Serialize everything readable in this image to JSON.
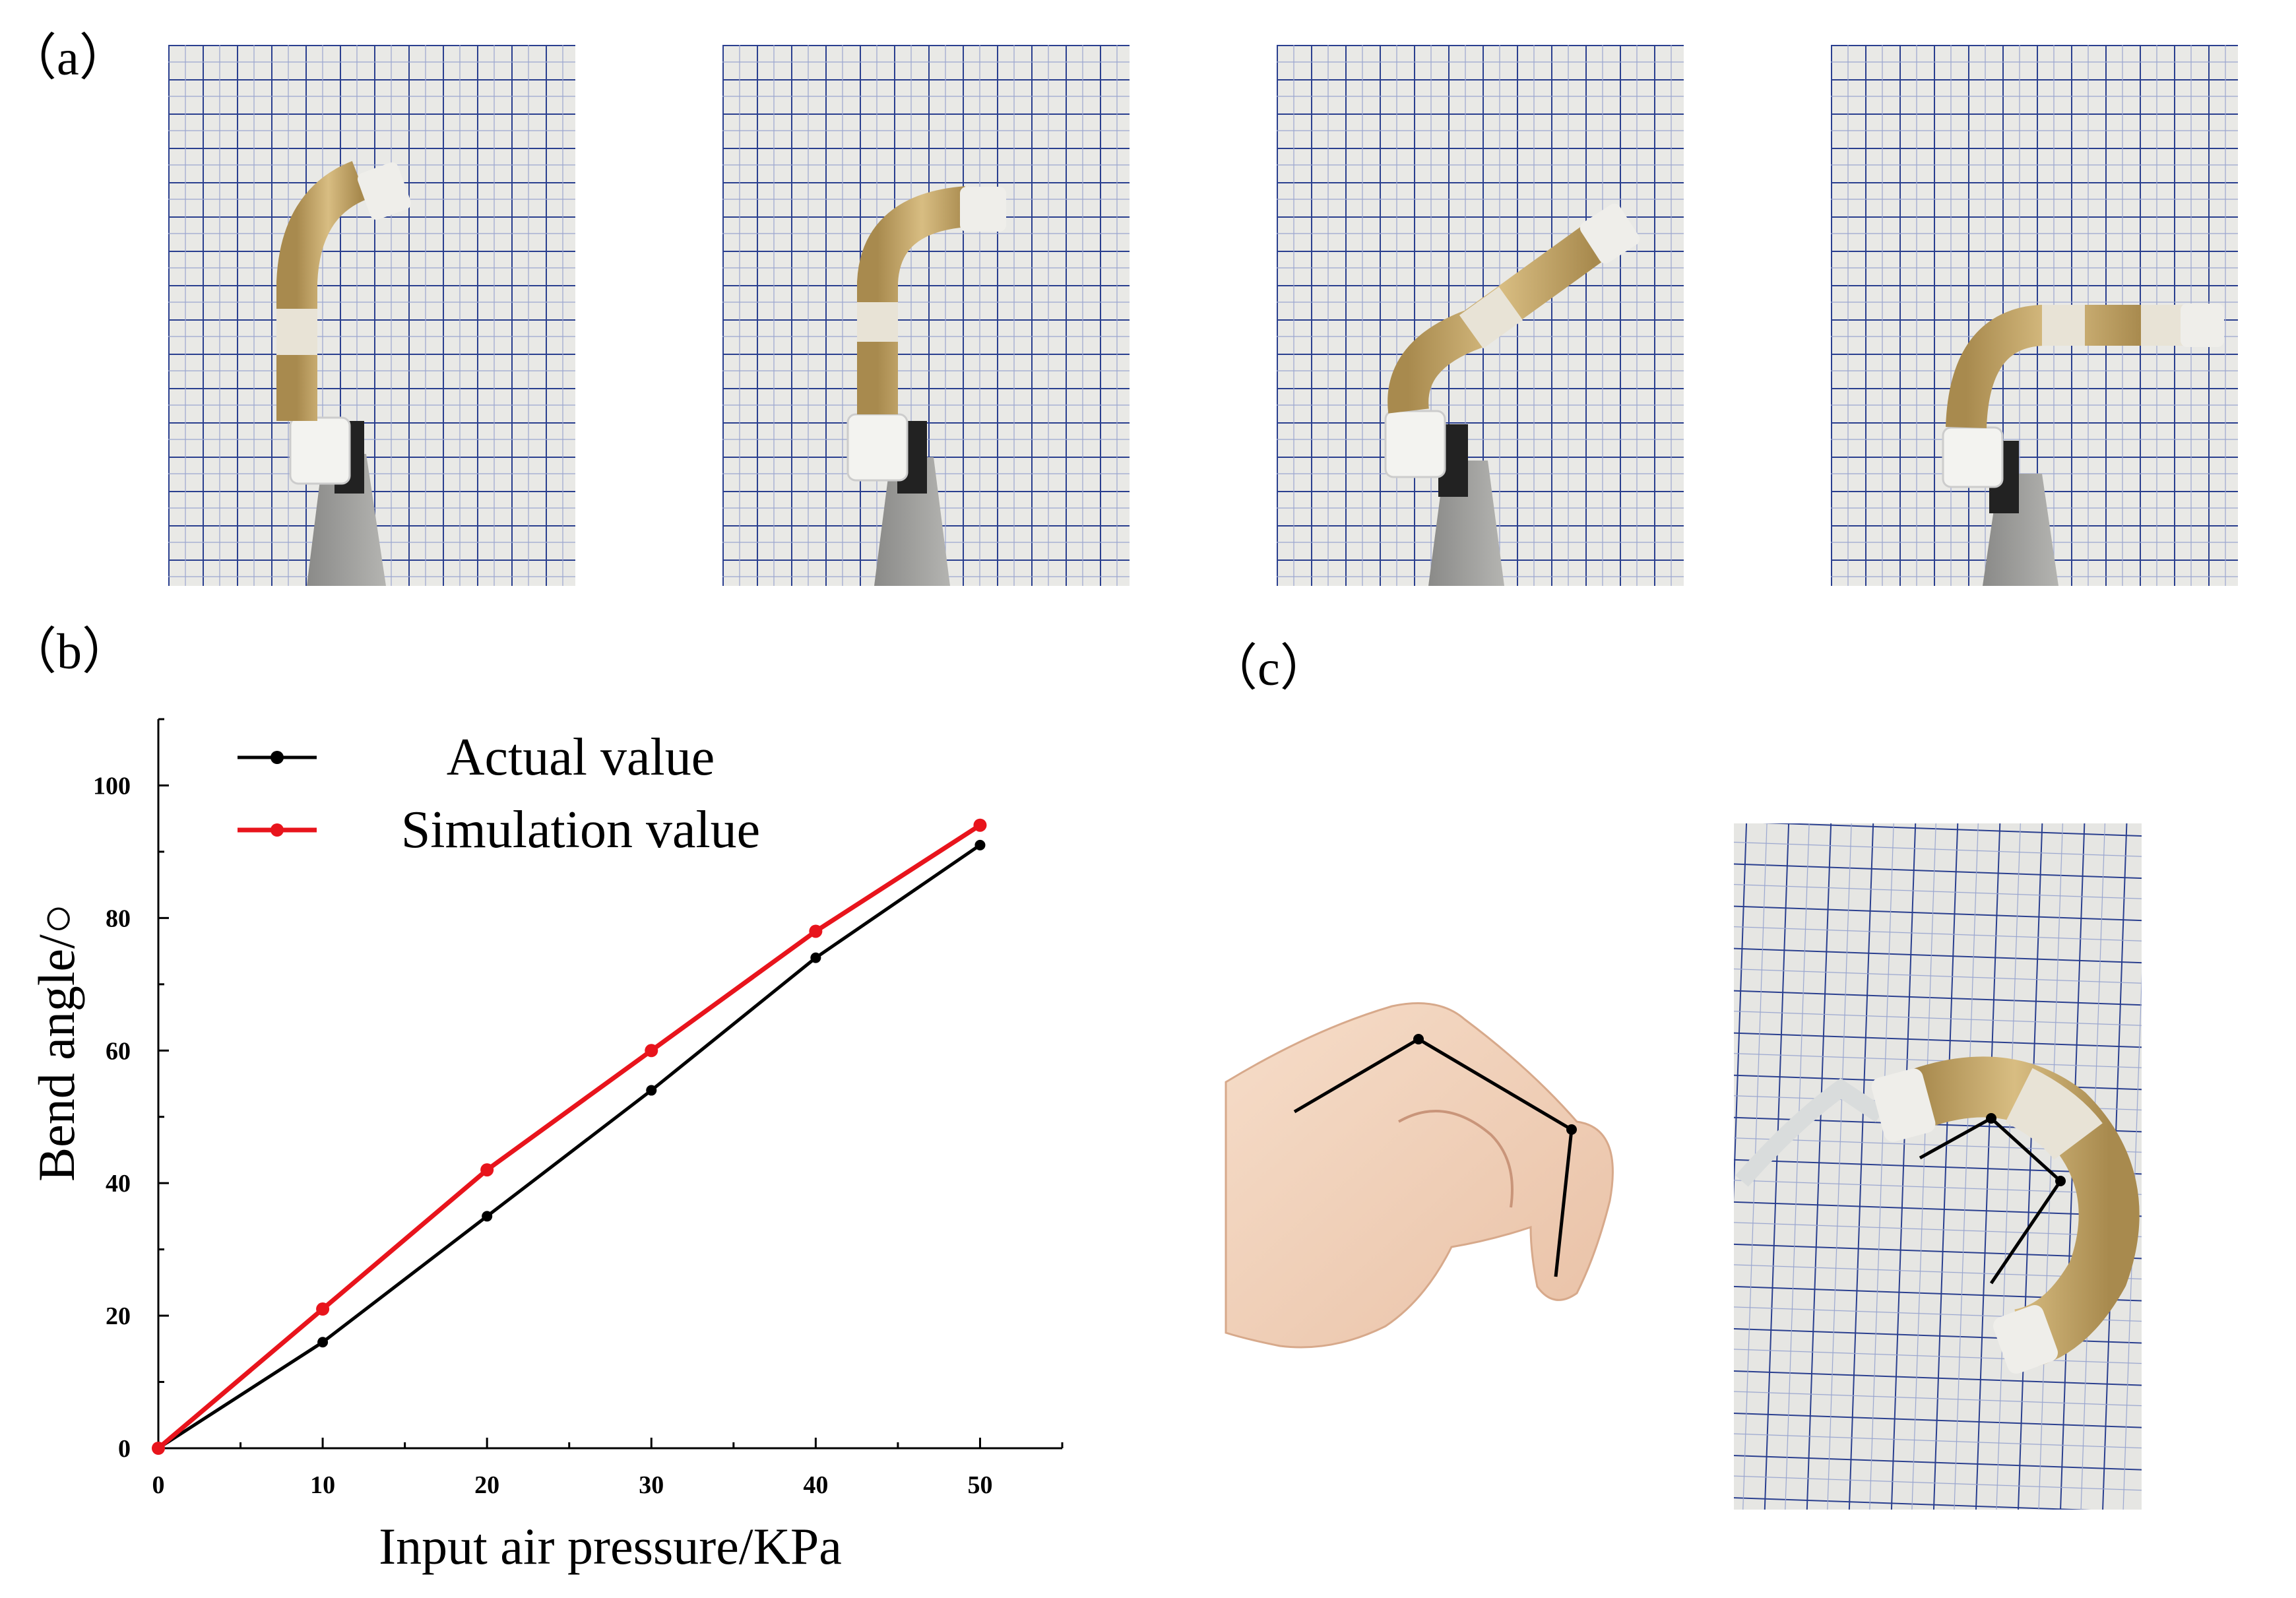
{
  "labels": {
    "a": "（a）",
    "b": "（b）",
    "c": "（c）"
  },
  "photos": {
    "a": [
      {
        "name": "actuator-photo-1"
      },
      {
        "name": "actuator-photo-2"
      },
      {
        "name": "actuator-photo-3"
      },
      {
        "name": "actuator-photo-4"
      }
    ],
    "c": [
      {
        "name": "finger-bend-photo"
      },
      {
        "name": "actuator-bend-photo"
      }
    ]
  },
  "colors": {
    "actual": "#000000",
    "simulation": "#e8141c",
    "grid_line": "#2a3f8f",
    "paper": "#e9e9e6"
  },
  "chart_data": {
    "type": "line",
    "xlabel": "Input air pressure/KPa",
    "ylabel": "Bend angle/○",
    "xlim": [
      0,
      55
    ],
    "ylim": [
      0,
      110
    ],
    "xticks": [
      "0",
      "10",
      "20",
      "30",
      "40",
      "50"
    ],
    "yticks": [
      "0",
      "20",
      "40",
      "60",
      "80",
      "100"
    ],
    "x": [
      0,
      10,
      20,
      30,
      40,
      50
    ],
    "series": [
      {
        "name": "Actual value",
        "color": "#000000",
        "values": [
          0,
          16,
          35,
          54,
          74,
          91
        ]
      },
      {
        "name": "Simulation value",
        "color": "#e8141c",
        "values": [
          0,
          21,
          42,
          60,
          78,
          94
        ]
      }
    ],
    "legend": "top-left",
    "grid": false
  }
}
